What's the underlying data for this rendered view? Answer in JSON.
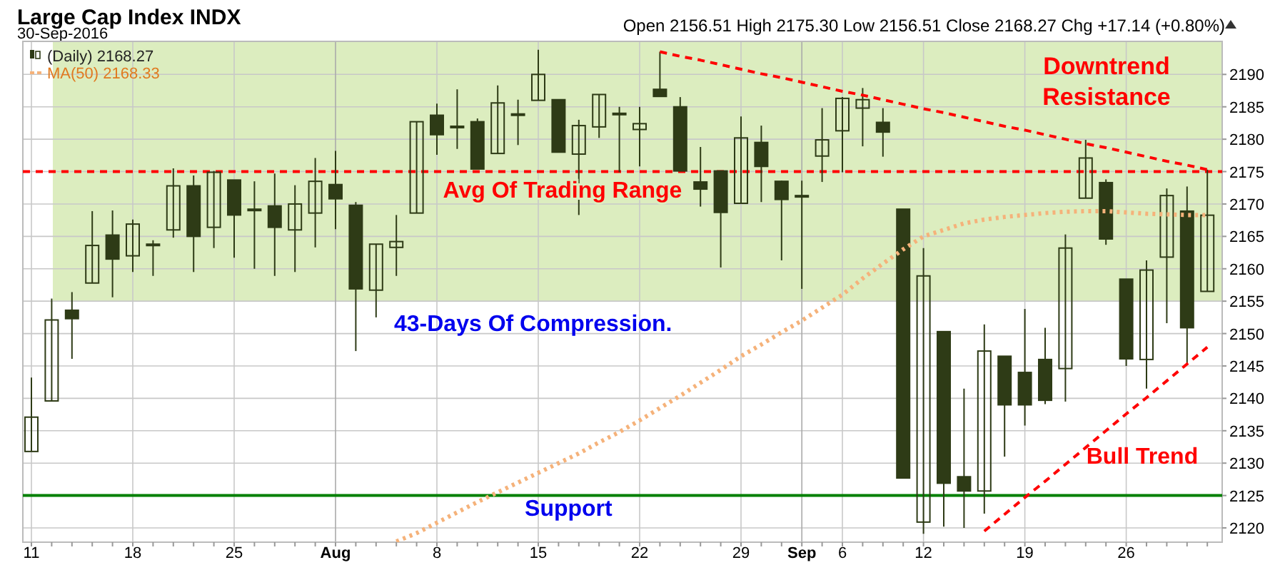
{
  "chart_data": {
    "type": "candlestick",
    "title": "Large Cap Index INDX",
    "subtitle": "30-Sep-2016",
    "annotations": [
      "Open 2156.51 High 2175.30 Low 2156.51 Close 2168.27 Chg +17.14 (+0.80%)",
      "Downtrend Resistance",
      "43-Days Of Compression.",
      "Bull Trend"
    ],
    "categories": [
      "11",
      null,
      null,
      null,
      null,
      "18",
      null,
      null,
      null,
      null,
      "25",
      null,
      null,
      null,
      null,
      "Aug",
      null,
      null,
      null,
      null,
      "8",
      null,
      null,
      null,
      null,
      "15",
      null,
      null,
      null,
      null,
      "22",
      null,
      null,
      null,
      null,
      "29",
      null,
      null,
      "Sep",
      null,
      "6",
      null,
      null,
      null,
      "12",
      null,
      null,
      null,
      null,
      "19",
      null,
      null,
      null,
      null,
      "26",
      null,
      null,
      null,
      null
    ],
    "ylim": [
      2117.8,
      2195.1
    ],
    "yticks": [
      2120,
      2125,
      2130,
      2135,
      2140,
      2145,
      2150,
      2155,
      2160,
      2165,
      2170,
      2175,
      2180,
      2185,
      2190
    ],
    "grid": true,
    "legend": "top left",
    "bands": [
      {
        "axis": "y",
        "from": 2155,
        "to": 2195.1,
        "color": "#dcedbf"
      }
    ],
    "ref_lines": [
      {
        "axis": "y",
        "value": 2175,
        "label": "Avg Of Trading Range",
        "color": "#ff0000",
        "line_style": "dashed"
      },
      {
        "axis": "y",
        "value": 2125,
        "label": "Support",
        "color": "#008000",
        "line_style": "solid"
      }
    ],
    "series": [
      {
        "type": "candlestick",
        "name": "(Daily) 2168.27",
        "color": "#2e3b16",
        "ohlc": [
          [
            2131.8,
            2143.2,
            2131.8,
            2137.1
          ],
          [
            2139.6,
            2155.4,
            2139.6,
            2152.1
          ],
          [
            2153.6,
            2156.4,
            2146.1,
            2152.3
          ],
          [
            2157.8,
            2168.9,
            2157.8,
            2163.6
          ],
          [
            2165.2,
            2169.0,
            2155.6,
            2161.5
          ],
          [
            2162.0,
            2167.6,
            2159.5,
            2166.9
          ],
          [
            2163.8,
            2164.4,
            2158.9,
            2163.6
          ],
          [
            2166.0,
            2175.5,
            2164.8,
            2172.8
          ],
          [
            2172.8,
            2174.4,
            2159.5,
            2165.0
          ],
          [
            2166.4,
            2175.1,
            2163.2,
            2174.9
          ],
          [
            2173.7,
            2173.7,
            2161.7,
            2168.3
          ],
          [
            2169.2,
            2173.5,
            2160.0,
            2169.0
          ],
          [
            2169.7,
            2174.7,
            2158.9,
            2166.4
          ],
          [
            2166.0,
            2172.9,
            2159.5,
            2170.0
          ],
          [
            2168.6,
            2177.1,
            2163.3,
            2173.5
          ],
          [
            2173.0,
            2178.2,
            2166.1,
            2170.8
          ],
          [
            2169.8,
            2170.3,
            2147.3,
            2156.9
          ],
          [
            2156.7,
            2163.8,
            2152.5,
            2163.8
          ],
          [
            2163.3,
            2168.3,
            2158.9,
            2164.2
          ],
          [
            2168.6,
            2182.7,
            2168.6,
            2182.7
          ],
          [
            2183.7,
            2185.5,
            2177.6,
            2180.7
          ],
          [
            2182.0,
            2187.7,
            2178.5,
            2181.8
          ],
          [
            2182.7,
            2183.2,
            2175.4,
            2175.4
          ],
          [
            2177.8,
            2188.3,
            2177.8,
            2185.6
          ],
          [
            2183.9,
            2186.1,
            2179.1,
            2183.7
          ],
          [
            2186.0,
            2193.8,
            2186.0,
            2190.0
          ],
          [
            2186.1,
            2186.1,
            2178.0,
            2178.0
          ],
          [
            2177.7,
            2183.0,
            2168.3,
            2182.1
          ],
          [
            2181.9,
            2186.9,
            2180.2,
            2186.9
          ],
          [
            2184.0,
            2185.0,
            2174.9,
            2183.8
          ],
          [
            2181.5,
            2185.0,
            2175.8,
            2182.4
          ],
          [
            2187.7,
            2193.5,
            2186.6,
            2186.6
          ],
          [
            2185.0,
            2186.5,
            2175.1,
            2175.1
          ],
          [
            2173.4,
            2178.8,
            2169.6,
            2172.3
          ],
          [
            2175.1,
            2175.1,
            2160.2,
            2168.7
          ],
          [
            2170.1,
            2183.5,
            2170.1,
            2180.2
          ],
          [
            2179.5,
            2182.1,
            2170.3,
            2175.8
          ],
          [
            2173.5,
            2173.6,
            2161.3,
            2170.7
          ],
          [
            2171.3,
            2173.6,
            2156.9,
            2171.1
          ],
          [
            2177.4,
            2184.8,
            2173.4,
            2179.9
          ],
          [
            2181.3,
            2186.5,
            2174.9,
            2186.3
          ],
          [
            2184.8,
            2187.9,
            2178.9,
            2186.1
          ],
          [
            2182.6,
            2184.8,
            2177.3,
            2181.1
          ],
          [
            2169.2,
            2169.2,
            2127.7,
            2127.7
          ],
          [
            2120.9,
            2163.2,
            2119.1,
            2158.9
          ],
          [
            2150.3,
            2150.3,
            2120.2,
            2126.9
          ],
          [
            2127.9,
            2141.5,
            2120.0,
            2125.7
          ],
          [
            2125.7,
            2151.4,
            2122.2,
            2147.3
          ],
          [
            2146.5,
            2146.5,
            2131.0,
            2139.0
          ],
          [
            2144.0,
            2153.8,
            2135.8,
            2139.0
          ],
          [
            2146.0,
            2150.9,
            2139.1,
            2139.7
          ],
          [
            2144.6,
            2165.3,
            2139.5,
            2163.2
          ],
          [
            2170.9,
            2179.9,
            2170.9,
            2177.1
          ],
          [
            2173.3,
            2173.8,
            2163.7,
            2164.6
          ],
          [
            2158.4,
            2158.4,
            2145.0,
            2146.1
          ],
          [
            2146.0,
            2161.3,
            2141.5,
            2159.8
          ],
          [
            2161.8,
            2172.4,
            2151.6,
            2171.3
          ],
          [
            2168.9,
            2172.7,
            2145.4,
            2150.9
          ],
          [
            2156.51,
            2175.3,
            2156.51,
            2168.27
          ]
        ]
      },
      {
        "type": "line",
        "name": "MA(50) 2168.33",
        "color": "#f5b27a",
        "line_style": "dotted",
        "values": [
          null,
          null,
          null,
          null,
          null,
          null,
          null,
          null,
          null,
          null,
          null,
          null,
          null,
          null,
          null,
          null,
          null,
          null,
          2117.9,
          2119.2,
          2120.8,
          2122.4,
          2124.0,
          2125.5,
          2127.0,
          2128.5,
          2130.0,
          2131.5,
          2133.2,
          2134.8,
          2136.6,
          2138.5,
          2140.4,
          2142.4,
          2144.4,
          2146.5,
          2148.3,
          2150.2,
          2152.0,
          2154.0,
          2156.0,
          2158.5,
          2160.8,
          2163.0,
          2165.0,
          2166.0,
          2167.0,
          2167.6,
          2168.0,
          2168.3,
          2168.6,
          2168.8,
          2168.9,
          2168.9,
          2168.7,
          2168.5,
          2168.4,
          2168.3,
          2168.3
        ]
      },
      {
        "type": "line",
        "color": "#ff0000",
        "line_style": "dashed",
        "values": [
          null,
          null,
          null,
          null,
          null,
          null,
          null,
          null,
          null,
          null,
          null,
          null,
          null,
          null,
          null,
          null,
          null,
          null,
          null,
          null,
          null,
          null,
          null,
          null,
          null,
          null,
          null,
          null,
          null,
          null,
          null,
          2193.5,
          2192.8,
          2192.2,
          2191.5,
          2190.8,
          2190.1,
          2189.5,
          2188.8,
          2188.1,
          2187.4,
          2186.8,
          2186.1,
          2185.4,
          2184.7,
          2184.1,
          2183.4,
          2182.7,
          2182.0,
          2181.4,
          2180.7,
          2180.0,
          2179.3,
          2178.7,
          2178.0,
          2177.3,
          2176.6,
          2176.0,
          2175.3
        ]
      },
      {
        "type": "line",
        "color": "#ff0000",
        "line_style": "dashed",
        "values": [
          null,
          null,
          null,
          null,
          null,
          null,
          null,
          null,
          null,
          null,
          null,
          null,
          null,
          null,
          null,
          null,
          null,
          null,
          null,
          null,
          null,
          null,
          null,
          null,
          null,
          null,
          null,
          null,
          null,
          null,
          null,
          null,
          null,
          null,
          null,
          null,
          null,
          null,
          null,
          null,
          null,
          null,
          null,
          null,
          null,
          null,
          null,
          2119.5,
          2122.1,
          2124.7,
          2127.2,
          2129.8,
          2132.4,
          2135.0,
          2137.6,
          2140.1,
          2142.7,
          2145.3,
          2147.9
        ]
      }
    ]
  }
}
